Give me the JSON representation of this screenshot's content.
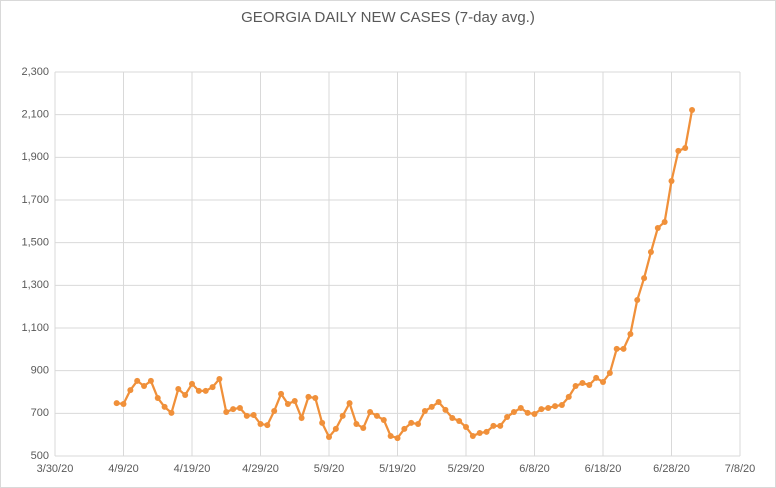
{
  "chart_data": {
    "type": "line",
    "title": "GEORGIA DAILY NEW CASES (7-day avg.)",
    "x": [
      "4/8/20",
      "4/9/20",
      "4/10/20",
      "4/11/20",
      "4/12/20",
      "4/13/20",
      "4/14/20",
      "4/15/20",
      "4/16/20",
      "4/17/20",
      "4/18/20",
      "4/19/20",
      "4/20/20",
      "4/21/20",
      "4/22/20",
      "4/23/20",
      "4/24/20",
      "4/25/20",
      "4/26/20",
      "4/27/20",
      "4/28/20",
      "4/29/20",
      "4/30/20",
      "5/1/20",
      "5/2/20",
      "5/3/20",
      "5/4/20",
      "5/5/20",
      "5/6/20",
      "5/7/20",
      "5/8/20",
      "5/9/20",
      "5/10/20",
      "5/11/20",
      "5/12/20",
      "5/13/20",
      "5/14/20",
      "5/15/20",
      "5/16/20",
      "5/17/20",
      "5/18/20",
      "5/19/20",
      "5/20/20",
      "5/21/20",
      "5/22/20",
      "5/23/20",
      "5/24/20",
      "5/25/20",
      "5/26/20",
      "5/27/20",
      "5/28/20",
      "5/29/20",
      "5/30/20",
      "5/31/20",
      "6/1/20",
      "6/2/20",
      "6/3/20",
      "6/4/20",
      "6/5/20",
      "6/6/20",
      "6/7/20",
      "6/8/20",
      "6/9/20",
      "6/10/20",
      "6/11/20",
      "6/12/20",
      "6/13/20",
      "6/14/20",
      "6/15/20",
      "6/16/20",
      "6/17/20",
      "6/18/20",
      "6/19/20",
      "6/20/20",
      "6/21/20",
      "6/22/20",
      "6/23/20",
      "6/24/20",
      "6/25/20",
      "6/26/20",
      "6/27/20",
      "6/28/20",
      "6/29/20",
      "6/30/20",
      "7/1/20"
    ],
    "series": [
      {
        "color": "#f0903a",
        "values": [
          748,
          744,
          809,
          852,
          828,
          852,
          772,
          730,
          702,
          814,
          786,
          838,
          805,
          805,
          823,
          861,
          706,
          720,
          725,
          688,
          692,
          650,
          645,
          711,
          791,
          744,
          758,
          678,
          777,
          772,
          655,
          589,
          627,
          688,
          748,
          650,
          631,
          706,
          688,
          669,
          594,
          584,
          627,
          655,
          650,
          711,
          730,
          753,
          716,
          678,
          664,
          636,
          594,
          608,
          613,
          641,
          641,
          683,
          706,
          725,
          702,
          697,
          720,
          725,
          734,
          739,
          777,
          828,
          842,
          833,
          866,
          847,
          889,
          1002,
          1002,
          1072,
          1231,
          1334,
          1456,
          1569,
          1597,
          1789,
          1930,
          1944,
          2122
        ]
      }
    ],
    "xlim": [
      "3/30/20",
      "7/8/20"
    ],
    "xticks": [
      "3/30/20",
      "4/9/20",
      "4/19/20",
      "4/29/20",
      "5/9/20",
      "5/19/20",
      "5/29/20",
      "6/8/20",
      "6/18/20",
      "6/28/20",
      "7/8/20"
    ],
    "ylim": [
      500,
      2300
    ],
    "yticks": [
      500,
      700,
      900,
      {
        "value": 1100,
        "label": "1,100"
      },
      {
        "value": 1300,
        "label": "1,300"
      },
      {
        "value": 1500,
        "label": "1,500"
      },
      {
        "value": 1700,
        "label": "1,700"
      },
      {
        "value": 1900,
        "label": "1,900"
      },
      {
        "value": 2100,
        "label": "2,100"
      },
      {
        "value": 2300,
        "label": "2,300"
      }
    ],
    "grid": true
  }
}
